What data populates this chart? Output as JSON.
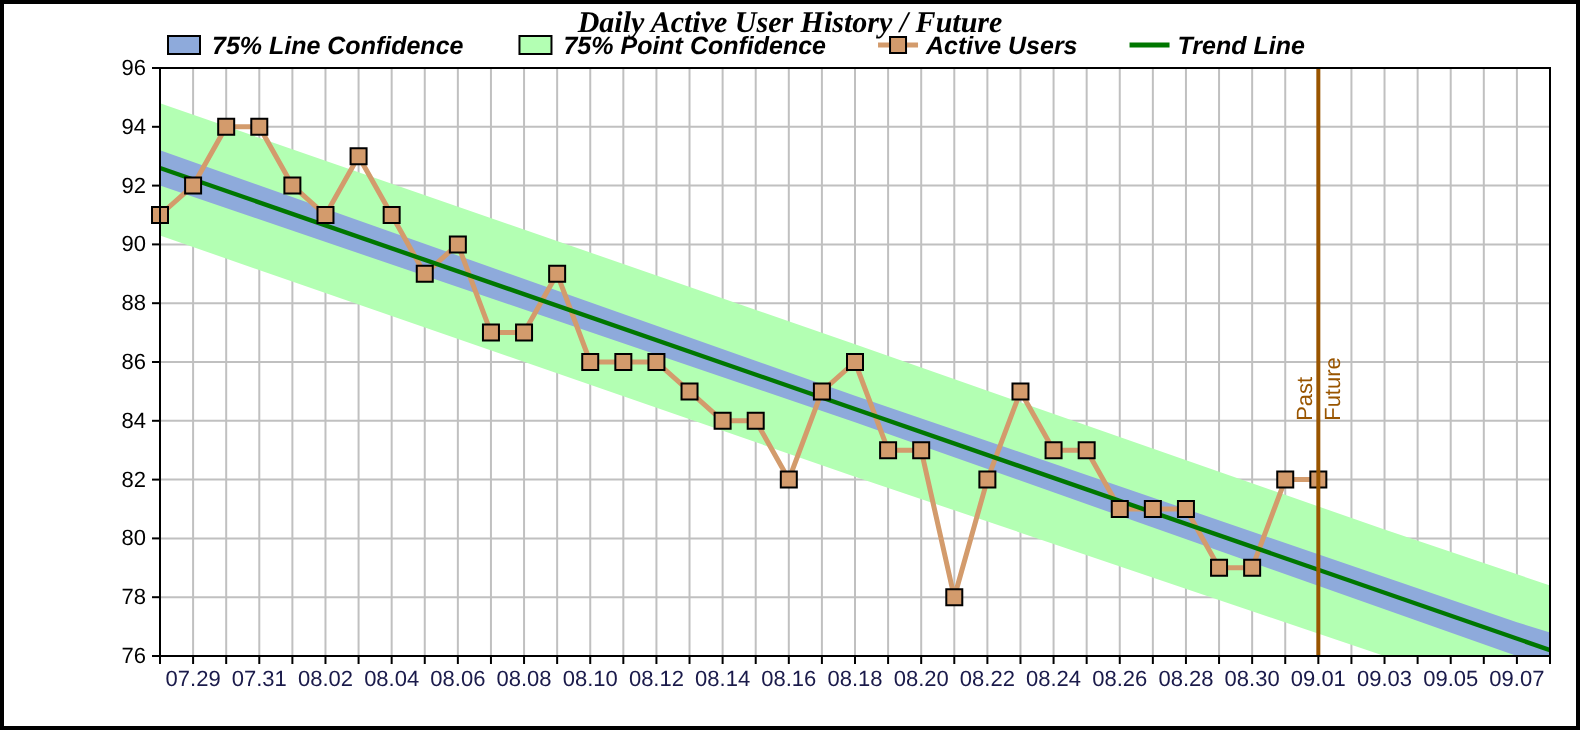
{
  "chart_data": {
    "type": "line",
    "title": "Daily Active User History / Future",
    "x": [
      "--07-28",
      "--07-29",
      "--07-30",
      "--07-31",
      "--08-01",
      "--08-02",
      "--08-03",
      "--08-04",
      "--08-05",
      "--08-06",
      "--08-07",
      "--08-08",
      "--08-09",
      "--08-10",
      "--08-11",
      "--08-12",
      "--08-13",
      "--08-14",
      "--08-15",
      "--08-16",
      "--08-17",
      "--08-18",
      "--08-19",
      "--08-20",
      "--08-21",
      "--08-22",
      "--08-23",
      "--08-24",
      "--08-25",
      "--08-26",
      "--08-27",
      "--08-28",
      "--08-29",
      "--08-30",
      "--08-31",
      "--09-01"
    ],
    "series": [
      {
        "name": "75% Line Confidence",
        "type": "area",
        "color": "#8eaadb",
        "x": [
          "--07-28",
          "--08-18",
          "--09-07",
          "--09-08"
        ],
        "values": [
          null,
          null,
          null,
          null
        ],
        "lower": [
          92.0,
          83.95,
          76.0,
          76.0
        ],
        "upper": [
          93.2,
          84.85,
          77.15,
          76.8
        ]
      },
      {
        "name": "75% Point Confidence",
        "type": "area",
        "color": "#b3ffb3",
        "x": [
          "--07-28",
          "--08-18",
          "--09-03",
          "--09-08"
        ],
        "values": [
          null,
          null,
          null,
          null
        ],
        "lower": [
          90.3,
          82.1,
          76.0,
          76.0
        ],
        "upper": [
          94.8,
          86.6,
          80.3,
          78.4
        ]
      },
      {
        "name": "Active Users",
        "color": "#d39b6c",
        "marker": "square",
        "values": [
          91,
          92,
          94,
          94,
          92,
          91,
          93,
          91,
          89,
          90,
          87,
          87,
          89,
          86,
          86,
          86,
          85,
          84,
          84,
          82,
          85,
          86,
          83,
          83,
          78,
          82,
          85,
          83,
          83,
          81,
          81,
          81,
          79,
          79,
          82,
          82
        ]
      },
      {
        "name": "Trend Line",
        "color": "#007700",
        "marker": "none",
        "x": [
          "--07-28",
          "--09-08"
        ],
        "values": [
          92.6,
          76.2
        ]
      }
    ],
    "xlim": [
      "--07-28",
      "--09-08"
    ],
    "xticks": [
      {
        "value": "--07-28",
        "label": null
      },
      {
        "value": "--07-29",
        "label": "07.29"
      },
      {
        "value": "--07-30",
        "label": null
      },
      {
        "value": "--07-31",
        "label": "07.31"
      },
      {
        "value": "--08-01",
        "label": null
      },
      {
        "value": "--08-02",
        "label": "08.02"
      },
      {
        "value": "--08-03",
        "label": null
      },
      {
        "value": "--08-04",
        "label": "08.04"
      },
      {
        "value": "--08-05",
        "label": null
      },
      {
        "value": "--08-06",
        "label": "08.06"
      },
      {
        "value": "--08-07",
        "label": null
      },
      {
        "value": "--08-08",
        "label": "08.08"
      },
      {
        "value": "--08-09",
        "label": null
      },
      {
        "value": "--08-10",
        "label": "08.10"
      },
      {
        "value": "--08-11",
        "label": null
      },
      {
        "value": "--08-12",
        "label": "08.12"
      },
      {
        "value": "--08-13",
        "label": null
      },
      {
        "value": "--08-14",
        "label": "08.14"
      },
      {
        "value": "--08-15",
        "label": null
      },
      {
        "value": "--08-16",
        "label": "08.16"
      },
      {
        "value": "--08-17",
        "label": null
      },
      {
        "value": "--08-18",
        "label": "08.18"
      },
      {
        "value": "--08-19",
        "label": null
      },
      {
        "value": "--08-20",
        "label": "08.20"
      },
      {
        "value": "--08-21",
        "label": null
      },
      {
        "value": "--08-22",
        "label": "08.22"
      },
      {
        "value": "--08-23",
        "label": null
      },
      {
        "value": "--08-24",
        "label": "08.24"
      },
      {
        "value": "--08-25",
        "label": null
      },
      {
        "value": "--08-26",
        "label": "08.26"
      },
      {
        "value": "--08-27",
        "label": null
      },
      {
        "value": "--08-28",
        "label": "08.28"
      },
      {
        "value": "--08-29",
        "label": null
      },
      {
        "value": "--08-30",
        "label": "08.30"
      },
      {
        "value": "--08-31",
        "label": null
      },
      {
        "value": "--09-01",
        "label": "09.01"
      },
      {
        "value": "--09-02",
        "label": null
      },
      {
        "value": "--09-03",
        "label": "09.03"
      },
      {
        "value": "--09-04",
        "label": null
      },
      {
        "value": "--09-05",
        "label": "09.05"
      },
      {
        "value": "--09-06",
        "label": null
      },
      {
        "value": "--09-07",
        "label": "09.07"
      },
      {
        "value": "--09-08",
        "label": null
      }
    ],
    "ylim": [
      76,
      96
    ],
    "yticks": [
      76,
      78,
      80,
      82,
      84,
      86,
      88,
      90,
      92,
      94,
      96
    ],
    "grid": true,
    "legend": "top left",
    "line_style": "solid",
    "ref_lines": [
      {
        "axis": "x",
        "value": "--09-01",
        "label": "Past",
        "color": "#995500"
      }
    ],
    "annotations": [
      {
        "text": "Future",
        "x": "--09-01",
        "y": 84
      }
    ]
  }
}
